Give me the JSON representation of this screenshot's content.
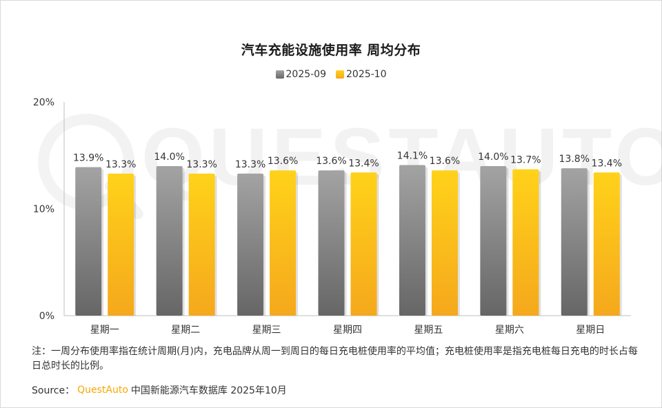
{
  "watermark": "QUESTAUTO",
  "chart_data": {
    "type": "bar",
    "title": "汽车充能设施使用率 周均分布",
    "categories": [
      "星期一",
      "星期二",
      "星期三",
      "星期四",
      "星期五",
      "星期六",
      "星期日"
    ],
    "series": [
      {
        "name": "2025-09",
        "values": [
          13.9,
          14.0,
          13.3,
          13.6,
          14.1,
          14.0,
          13.8
        ],
        "labels": [
          "13.9%",
          "14.0%",
          "13.3%",
          "13.6%",
          "14.1%",
          "14.0%",
          "13.8%"
        ],
        "color_top": "#a3a3a3",
        "color_bottom": "#666666"
      },
      {
        "name": "2025-10",
        "values": [
          13.3,
          13.3,
          13.6,
          13.4,
          13.6,
          13.7,
          13.4
        ],
        "labels": [
          "13.3%",
          "13.3%",
          "13.6%",
          "13.4%",
          "13.6%",
          "13.7%",
          "13.4%"
        ],
        "color_top": "#ffd21a",
        "color_bottom": "#f5a81c"
      }
    ],
    "ylim": [
      0,
      20
    ],
    "yticks": [
      0,
      10,
      20
    ],
    "ytick_labels": [
      "0%",
      "10%",
      "20%"
    ],
    "legend_position": "top-center"
  },
  "note": "注：一周分布使用率指在统计周期(月)内，充电品牌从周一到周日的每日充电桩使用率的平均值；充电桩使用率是指充电桩每日充电的时长占每日总时长的比例。",
  "source": {
    "label": "Source：",
    "brand": "QuestAuto",
    "text": "中国新能源汽车数据库 2025年10月"
  }
}
